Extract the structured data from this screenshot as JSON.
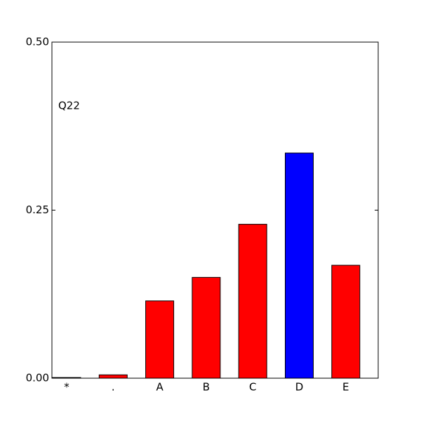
{
  "chart_data": {
    "type": "bar",
    "annotation": "Q22",
    "categories": [
      "*",
      ".",
      "A",
      "B",
      "C",
      "D",
      "E"
    ],
    "values": [
      0.001,
      0.005,
      0.115,
      0.15,
      0.229,
      0.335,
      0.168
    ],
    "colors": [
      "#ff0000",
      "#ff0000",
      "#ff0000",
      "#ff0000",
      "#ff0000",
      "#0000ff",
      "#ff0000"
    ],
    "ylim": [
      0,
      0.5
    ],
    "yticks": [
      {
        "value": 0,
        "label": "0.00"
      },
      {
        "value": 0.25,
        "label": "0.25"
      },
      {
        "value": 0.5,
        "label": "0.50"
      }
    ]
  }
}
